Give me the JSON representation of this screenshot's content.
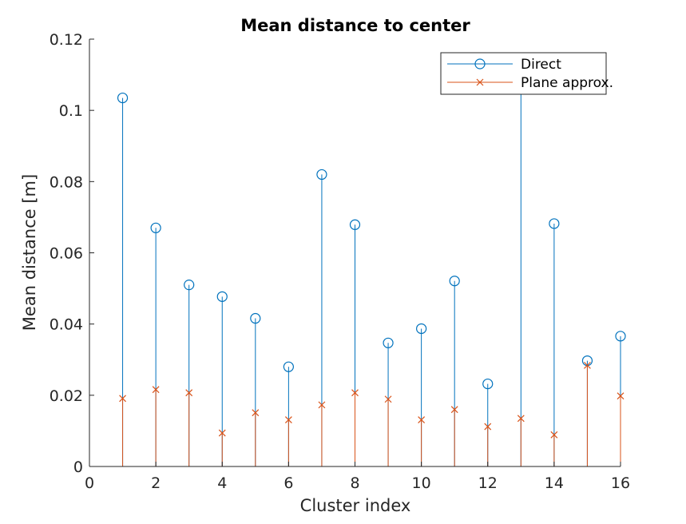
{
  "chart_data": {
    "type": "stem",
    "title": "Mean distance to center",
    "xlabel": "Cluster index",
    "ylabel": "Mean distance [m]",
    "xlim": [
      0,
      16
    ],
    "ylim": [
      0,
      0.12
    ],
    "xticks": [
      "0",
      "2",
      "4",
      "6",
      "8",
      "10",
      "12",
      "14",
      "16"
    ],
    "yticks": [
      "0",
      "0.02",
      "0.04",
      "0.06",
      "0.08",
      "0.1",
      "0.12"
    ],
    "grid": false,
    "legend_position": "top-right",
    "x": [
      1,
      2,
      3,
      4,
      5,
      6,
      7,
      8,
      9,
      10,
      11,
      12,
      13,
      14,
      15,
      16
    ],
    "series": [
      {
        "name": "Direct",
        "marker": "circle",
        "color": "#0072BD",
        "values": [
          0.1035,
          0.067,
          0.051,
          0.0477,
          0.0416,
          0.028,
          0.082,
          0.0679,
          0.0347,
          0.0387,
          0.0521,
          0.0232,
          0.1085,
          0.0682,
          0.0297,
          0.0366
        ]
      },
      {
        "name": "Plane approx.",
        "marker": "x",
        "color": "#D95319",
        "values": [
          0.0191,
          0.0216,
          0.0207,
          0.0094,
          0.0151,
          0.0131,
          0.0173,
          0.0207,
          0.0189,
          0.0131,
          0.016,
          0.0112,
          0.0135,
          0.0089,
          0.0284,
          0.0198
        ]
      }
    ]
  }
}
